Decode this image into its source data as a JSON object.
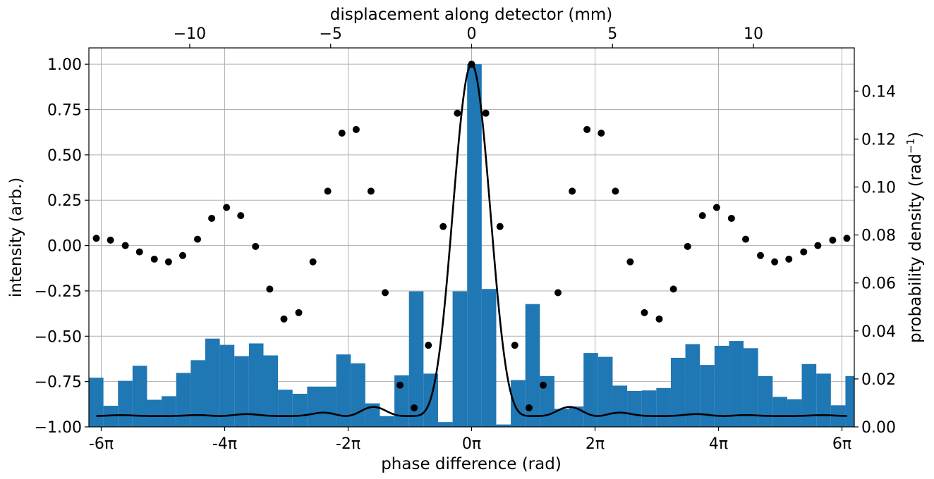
{
  "chart_data": {
    "type": "bar+line",
    "xlabel_bottom": "phase difference (rad)",
    "xlabel_top": "displacement along detector (mm)",
    "ylabel_left": "intensity (arb.)",
    "ylabel_right": "probability density (rad",
    "ylabel_right_sup": "−1",
    "ylabel_right_close": ")",
    "xlim_pi": [
      -6.2,
      6.2
    ],
    "ylim_left": [
      -1.0,
      1.09
    ],
    "ylim_right": [
      0.0,
      0.158
    ],
    "grid": true,
    "bottom_ticks": [
      {
        "value_pi": -6,
        "label": "-6π"
      },
      {
        "value_pi": -4,
        "label": "-4π"
      },
      {
        "value_pi": -2,
        "label": "-2π"
      },
      {
        "value_pi": 0,
        "label": "0π"
      },
      {
        "value_pi": 2,
        "label": "2π"
      },
      {
        "value_pi": 4,
        "label": "4π"
      },
      {
        "value_pi": 6,
        "label": "6π"
      }
    ],
    "top_ticks": [
      {
        "value": -10,
        "label": "−10"
      },
      {
        "value": -5,
        "label": "−5"
      },
      {
        "value": 0,
        "label": "0"
      },
      {
        "value": 5,
        "label": "5"
      },
      {
        "value": 10,
        "label": "10"
      }
    ],
    "top_axis_mm_per_pi": 2.19,
    "left_ticks": [
      {
        "value": 1.0,
        "label": "1.00"
      },
      {
        "value": 0.75,
        "label": "0.75"
      },
      {
        "value": 0.5,
        "label": "0.50"
      },
      {
        "value": 0.25,
        "label": "0.25"
      },
      {
        "value": 0.0,
        "label": "0.00"
      },
      {
        "value": -0.25,
        "label": "−0.25"
      },
      {
        "value": -0.5,
        "label": "−0.50"
      },
      {
        "value": -0.75,
        "label": "−0.75"
      },
      {
        "value": -1.0,
        "label": "−1.00"
      }
    ],
    "right_ticks": [
      {
        "value": 0.0,
        "label": "0.00"
      },
      {
        "value": 0.02,
        "label": "0.02"
      },
      {
        "value": 0.04,
        "label": "0.04"
      },
      {
        "value": 0.06,
        "label": "0.06"
      },
      {
        "value": 0.08,
        "label": "0.08"
      },
      {
        "value": 0.1,
        "label": "0.10"
      },
      {
        "value": 0.12,
        "label": "0.12"
      },
      {
        "value": 0.14,
        "label": "0.14"
      }
    ],
    "histogram": {
      "color": "#1f77b4",
      "x_start_pi": -6.2,
      "bin_width_pi": 0.2357,
      "density": [
        0.0205,
        0.0088,
        0.0192,
        0.0255,
        0.0113,
        0.0128,
        0.0225,
        0.0278,
        0.0368,
        0.0342,
        0.0295,
        0.0348,
        0.0298,
        0.0155,
        0.0138,
        0.0168,
        0.0168,
        0.0302,
        0.0265,
        0.0098,
        0.0045,
        0.0215,
        0.0565,
        0.0222,
        0.002,
        0.0565,
        0.1512,
        0.0575,
        0.001,
        0.0195,
        0.0512,
        0.0212,
        0.0075,
        0.0085,
        0.0308,
        0.0292,
        0.0172,
        0.015,
        0.0152,
        0.0162,
        0.0288,
        0.0345,
        0.0258,
        0.0338,
        0.0358,
        0.0328,
        0.0212,
        0.0125,
        0.0115,
        0.0262,
        0.0222,
        0.009,
        0.0212
      ]
    },
    "curve": {
      "color": "#000000",
      "model": "intensity(φ) = cos(φ/2)^2 · sinc(φ/(2π·0.51))^2 · 1.94 − 0.94",
      "points_x_pi": [
        -6.08,
        -5.85,
        -5.61,
        -5.38,
        -5.14,
        -4.91,
        -4.68,
        -4.44,
        -4.21,
        -3.97,
        -3.74,
        -3.5,
        -3.27,
        -3.04,
        -2.8,
        -2.57,
        -2.33,
        -2.1,
        -1.87,
        -1.63,
        -1.4,
        -1.16,
        -0.93,
        -0.7,
        -0.46,
        -0.23,
        0.0,
        0.23,
        0.46,
        0.7,
        0.93,
        1.16,
        1.4,
        1.63,
        1.87,
        2.1,
        2.33,
        2.57,
        2.8,
        3.04,
        3.27,
        3.5,
        3.74,
        3.97,
        4.21,
        4.44,
        4.68,
        4.91,
        5.14,
        5.38,
        5.61,
        5.85,
        6.08
      ],
      "points_y": [
        0.04,
        0.03,
        0.0,
        -0.035,
        -0.075,
        -0.09,
        -0.055,
        0.035,
        0.15,
        0.21,
        0.165,
        -0.005,
        -0.24,
        -0.405,
        -0.37,
        -0.09,
        0.3,
        0.62,
        0.64,
        0.3,
        -0.26,
        -0.77,
        -0.895,
        -0.55,
        0.105,
        0.73,
        1.0,
        0.73,
        0.105,
        -0.55,
        -0.895,
        -0.77,
        -0.26,
        0.3,
        0.64,
        0.62,
        0.3,
        -0.09,
        -0.37,
        -0.405,
        -0.24,
        -0.005,
        0.165,
        0.21,
        0.15,
        0.035,
        -0.055,
        -0.09,
        -0.075,
        -0.035,
        0.0,
        0.03,
        0.04
      ]
    }
  }
}
